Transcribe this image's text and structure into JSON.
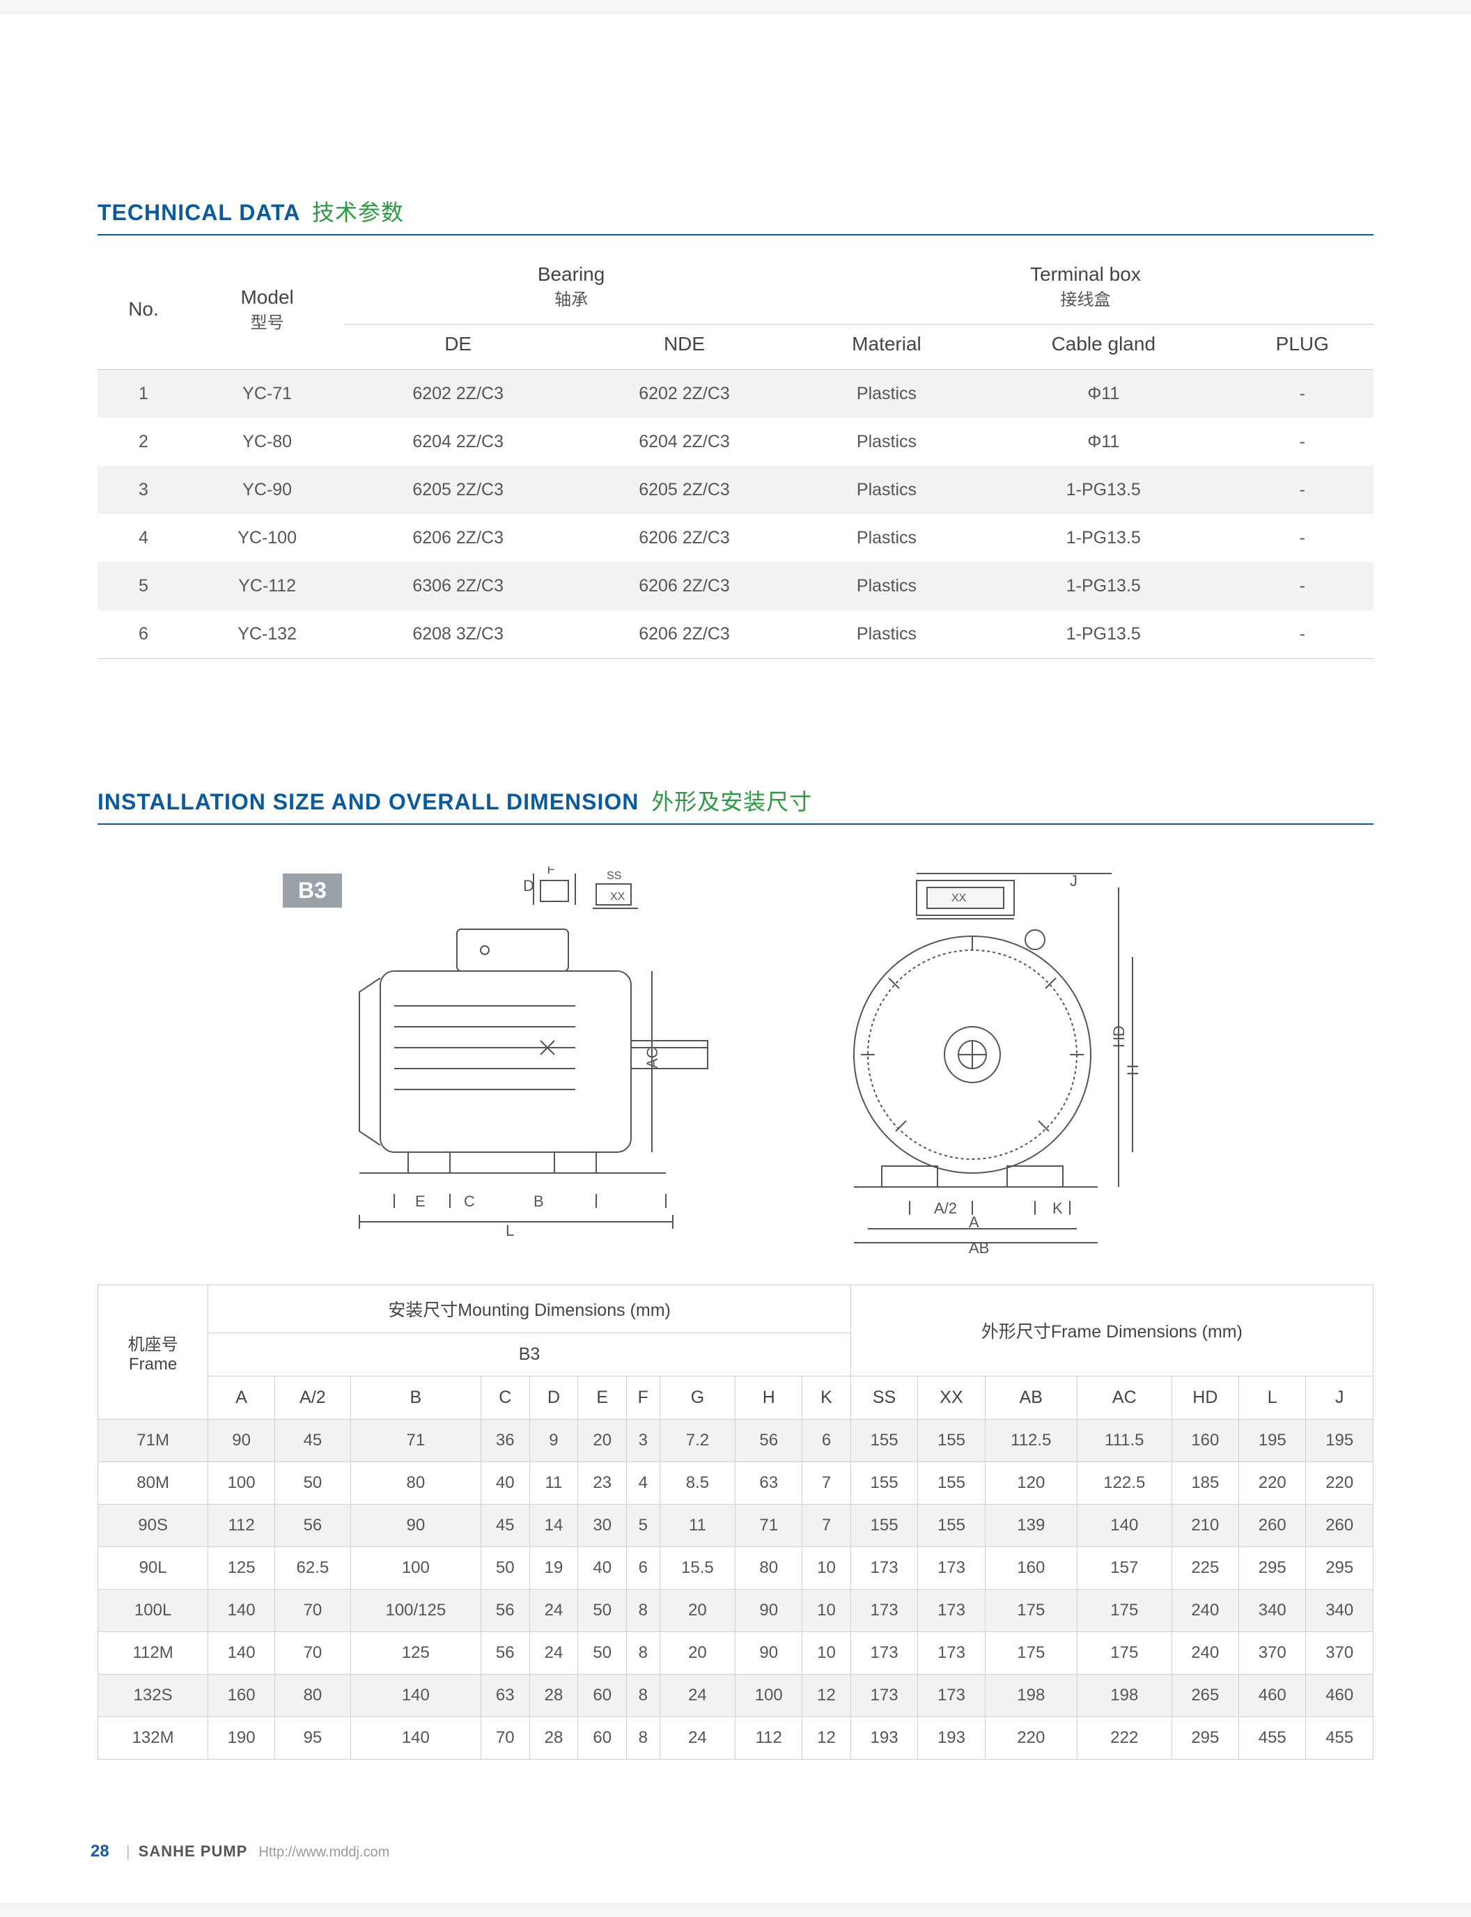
{
  "colors": {
    "title": "#0a5aa0",
    "title_cn": "#2a9b3e",
    "rule": "#0a5aa0"
  },
  "section1": {
    "title_en": "TECHNICAL DATA",
    "title_cn": "技术参数",
    "head": {
      "no": "No.",
      "model": "Model",
      "model_cn": "型号",
      "bearing": "Bearing",
      "bearing_cn": "轴承",
      "de": "DE",
      "nde": "NDE",
      "tbox": "Terminal box",
      "tbox_cn": "接线盒",
      "material": "Material",
      "cable": "Cable gland",
      "plug": "PLUG"
    },
    "rows": [
      {
        "no": "1",
        "model": "YC-71",
        "de": "6202 2Z/C3",
        "nde": "6202 2Z/C3",
        "mat": "Plastics",
        "cable": "Φ11",
        "plug": "-"
      },
      {
        "no": "2",
        "model": "YC-80",
        "de": "6204 2Z/C3",
        "nde": "6204 2Z/C3",
        "mat": "Plastics",
        "cable": "Φ11",
        "plug": "-"
      },
      {
        "no": "3",
        "model": "YC-90",
        "de": "6205 2Z/C3",
        "nde": "6205 2Z/C3",
        "mat": "Plastics",
        "cable": "1-PG13.5",
        "plug": "-"
      },
      {
        "no": "4",
        "model": "YC-100",
        "de": "6206 2Z/C3",
        "nde": "6206 2Z/C3",
        "mat": "Plastics",
        "cable": "1-PG13.5",
        "plug": "-"
      },
      {
        "no": "5",
        "model": "YC-112",
        "de": "6306 2Z/C3",
        "nde": "6206 2Z/C3",
        "mat": "Plastics",
        "cable": "1-PG13.5",
        "plug": "-"
      },
      {
        "no": "6",
        "model": "YC-132",
        "de": "6208 3Z/C3",
        "nde": "6206 2Z/C3",
        "mat": "Plastics",
        "cable": "1-PG13.5",
        "plug": "-"
      }
    ]
  },
  "section2": {
    "title_en": "INSTALLATION SIZE AND OVERALL DIMENSION",
    "title_cn": "外形及安装尺寸",
    "badge": "B3",
    "diagram_labels": {
      "left": [
        "F",
        "SS",
        "D",
        "E",
        "C",
        "B",
        "L",
        "AC"
      ],
      "right": [
        "XX",
        "J",
        "HD",
        "H",
        "K",
        "A/2",
        "A",
        "AB"
      ]
    },
    "head": {
      "frame": "机座号",
      "frame_en": "Frame",
      "mount": "安装尺寸Mounting Dimensions (mm)",
      "mount_sub": "B3",
      "framed": "外形尺寸Frame Dimensions (mm)",
      "cols_mount": [
        "A",
        "A/2",
        "B",
        "C",
        "D",
        "E",
        "F",
        "G",
        "H",
        "K"
      ],
      "cols_frame": [
        "SS",
        "XX",
        "AB",
        "AC",
        "HD",
        "L",
        "J"
      ]
    },
    "rows": [
      {
        "frame": "71M",
        "v": [
          "90",
          "45",
          "71",
          "36",
          "9",
          "20",
          "3",
          "7.2",
          "56",
          "6",
          "155",
          "155",
          "112.5",
          "111.5",
          "160",
          "195",
          "195"
        ]
      },
      {
        "frame": "80M",
        "v": [
          "100",
          "50",
          "80",
          "40",
          "11",
          "23",
          "4",
          "8.5",
          "63",
          "7",
          "155",
          "155",
          "120",
          "122.5",
          "185",
          "220",
          "220"
        ]
      },
      {
        "frame": "90S",
        "v": [
          "112",
          "56",
          "90",
          "45",
          "14",
          "30",
          "5",
          "11",
          "71",
          "7",
          "155",
          "155",
          "139",
          "140",
          "210",
          "260",
          "260"
        ]
      },
      {
        "frame": "90L",
        "v": [
          "125",
          "62.5",
          "100",
          "50",
          "19",
          "40",
          "6",
          "15.5",
          "80",
          "10",
          "173",
          "173",
          "160",
          "157",
          "225",
          "295",
          "295"
        ]
      },
      {
        "frame": "100L",
        "v": [
          "140",
          "70",
          "100/125",
          "56",
          "24",
          "50",
          "8",
          "20",
          "90",
          "10",
          "173",
          "173",
          "175",
          "175",
          "240",
          "340",
          "340"
        ]
      },
      {
        "frame": "112M",
        "v": [
          "140",
          "70",
          "125",
          "56",
          "24",
          "50",
          "8",
          "20",
          "90",
          "10",
          "173",
          "173",
          "175",
          "175",
          "240",
          "370",
          "370"
        ]
      },
      {
        "frame": "132S",
        "v": [
          "160",
          "80",
          "140",
          "63",
          "28",
          "60",
          "8",
          "24",
          "100",
          "12",
          "173",
          "173",
          "198",
          "198",
          "265",
          "460",
          "460"
        ]
      },
      {
        "frame": "132M",
        "v": [
          "190",
          "95",
          "140",
          "70",
          "28",
          "60",
          "8",
          "24",
          "112",
          "12",
          "193",
          "193",
          "220",
          "222",
          "295",
          "455",
          "455"
        ]
      }
    ]
  },
  "footer": {
    "page": "28",
    "brand": "SANHE PUMP",
    "url": "Http://www.mddj.com"
  }
}
